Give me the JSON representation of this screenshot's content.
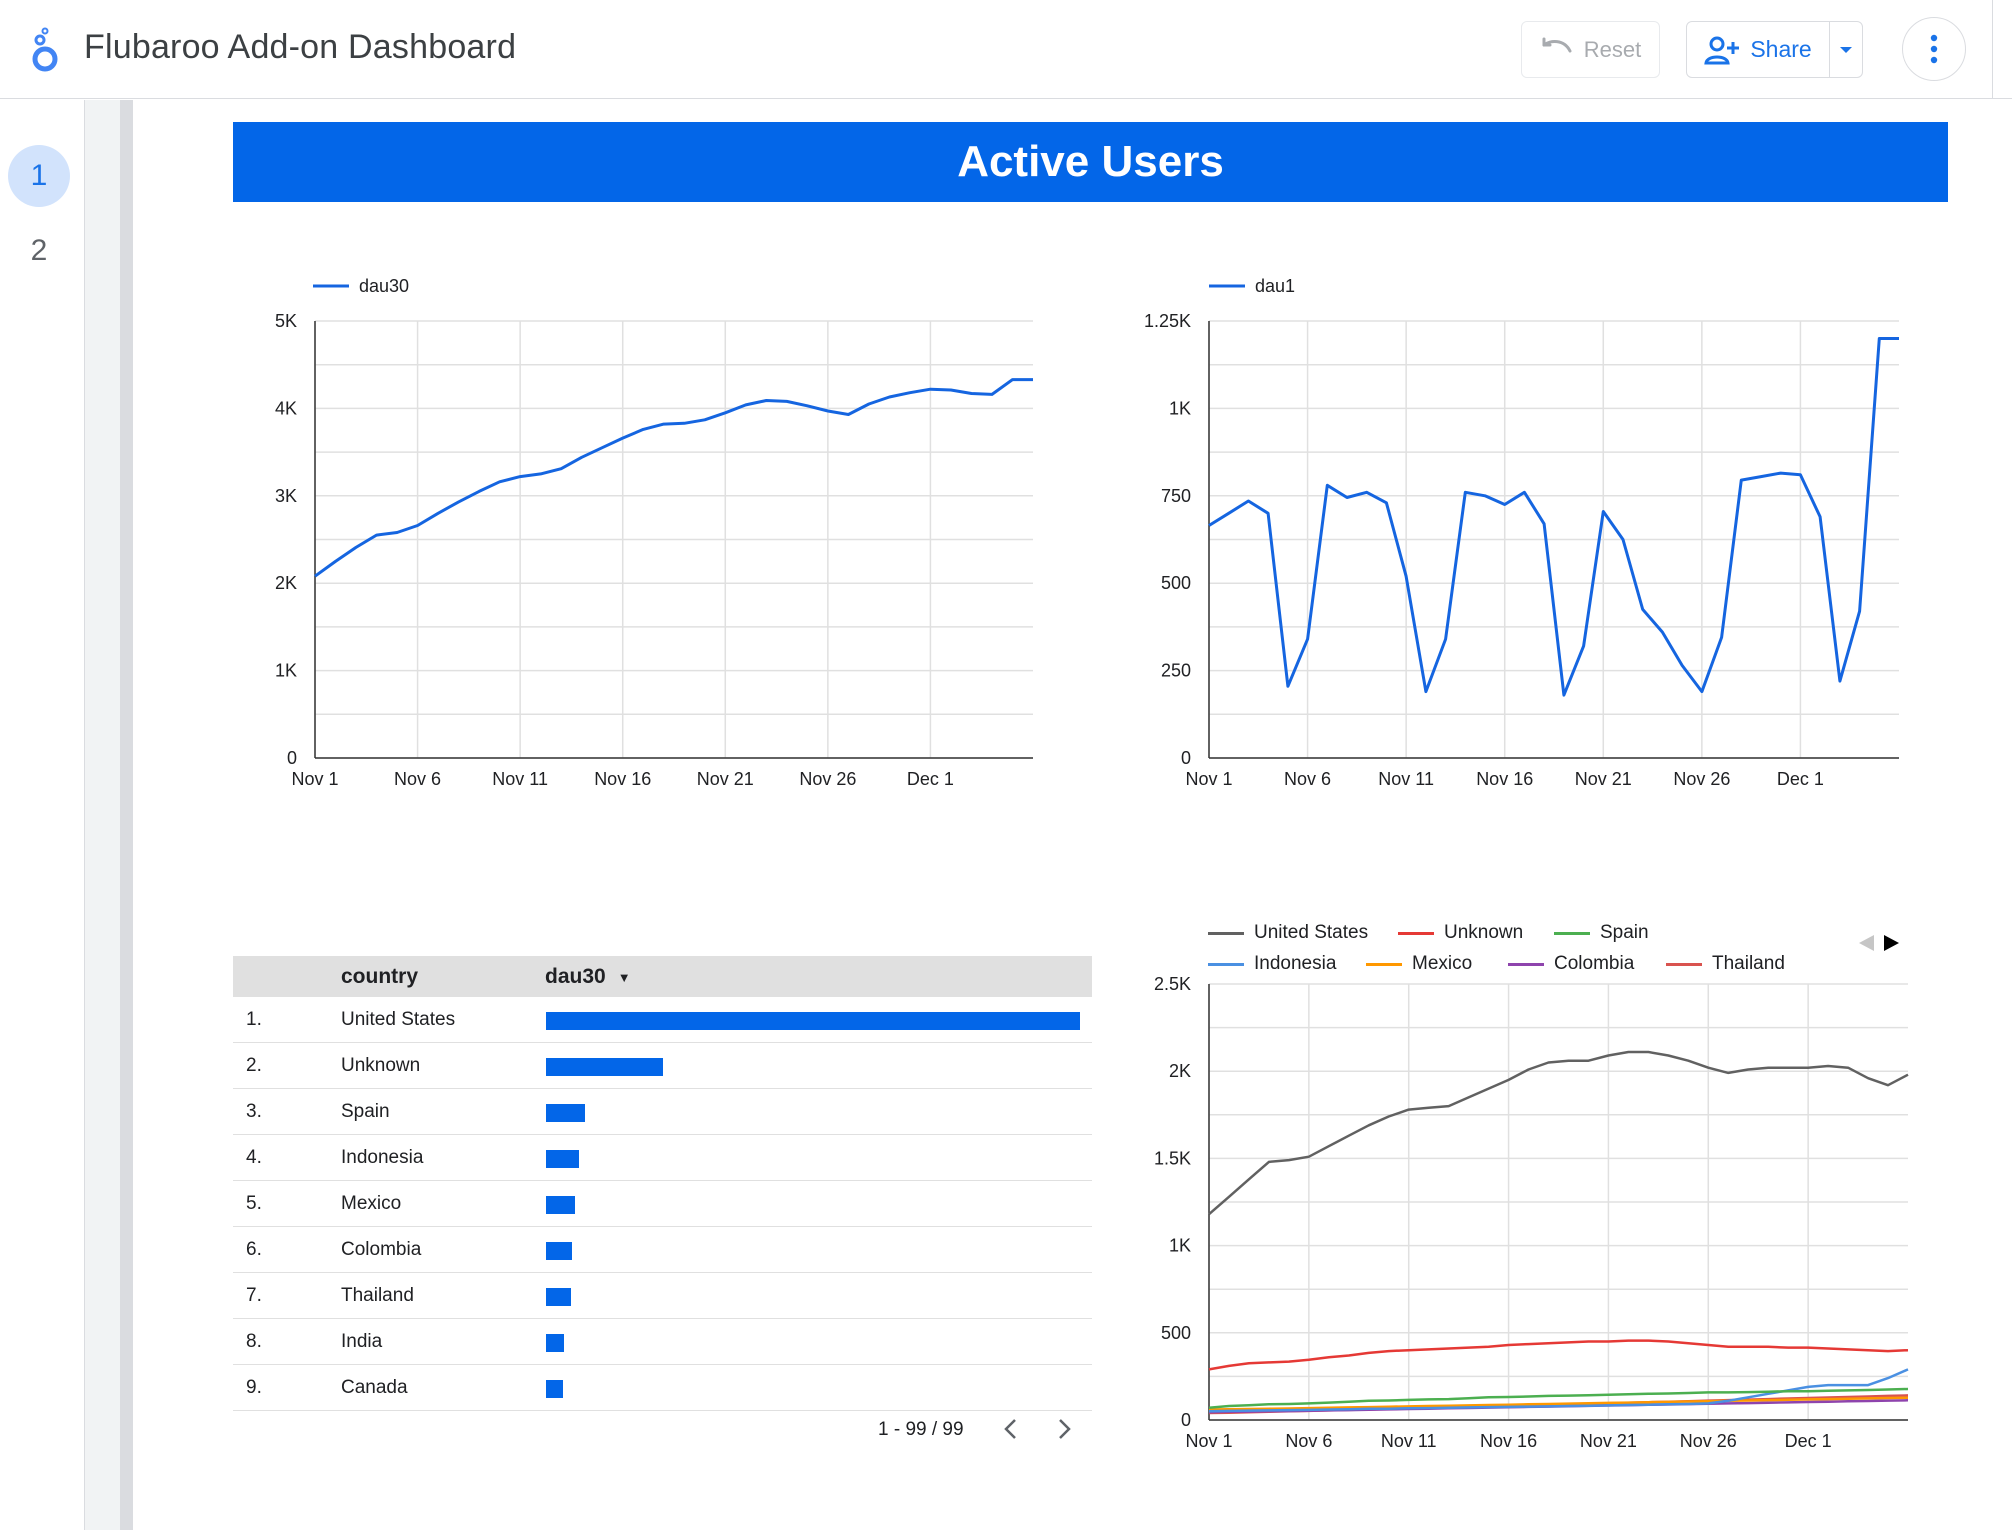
{
  "app": {
    "title": "Flubaroo Add-on Dashboard"
  },
  "toolbar": {
    "reset_label": "Reset",
    "share_label": "Share"
  },
  "pages": [
    {
      "label": "1",
      "active": true
    },
    {
      "label": "2",
      "active": false
    }
  ],
  "banner": {
    "title": "Active Users"
  },
  "colors": {
    "accent": "#0366e8",
    "share_blue": "#1a73e8"
  },
  "chart_data": [
    {
      "type": "line",
      "legend": [
        "dau30"
      ],
      "x_ticks": [
        "Nov 1",
        "Nov 6",
        "Nov 11",
        "Nov 16",
        "Nov 21",
        "Nov 26",
        "Dec 1"
      ],
      "y_ticks": [
        "0",
        "1K",
        "2K",
        "3K",
        "4K",
        "5K"
      ],
      "ylim": [
        0,
        5000
      ],
      "grid": true,
      "legend_position": "top-left",
      "series": [
        {
          "name": "dau30",
          "color": "#1565e0",
          "x": [
            1,
            2,
            3,
            4,
            5,
            6,
            7,
            8,
            9,
            10,
            11,
            12,
            13,
            14,
            15,
            16,
            17,
            18,
            19,
            20,
            21,
            22,
            23,
            24,
            25,
            26,
            27,
            28,
            29,
            30,
            31,
            32,
            33,
            34,
            35,
            36
          ],
          "values": [
            2080,
            2250,
            2410,
            2550,
            2580,
            2660,
            2800,
            2930,
            3050,
            3160,
            3220,
            3250,
            3310,
            3440,
            3550,
            3660,
            3760,
            3820,
            3830,
            3870,
            3950,
            4040,
            4090,
            4080,
            4030,
            3970,
            3930,
            4050,
            4130,
            4180,
            4220,
            4210,
            4170,
            4160,
            4330,
            4330
          ]
        }
      ]
    },
    {
      "type": "line",
      "legend": [
        "dau1"
      ],
      "x_ticks": [
        "Nov 1",
        "Nov 6",
        "Nov 11",
        "Nov 16",
        "Nov 21",
        "Nov 26",
        "Dec 1"
      ],
      "y_ticks": [
        "0",
        "250",
        "500",
        "750",
        "1K",
        "1.25K"
      ],
      "ylim": [
        0,
        1250
      ],
      "grid": true,
      "legend_position": "top-left",
      "series": [
        {
          "name": "dau1",
          "color": "#1565e0",
          "x": [
            1,
            2,
            3,
            4,
            5,
            6,
            7,
            8,
            9,
            10,
            11,
            12,
            13,
            14,
            15,
            16,
            17,
            18,
            19,
            20,
            21,
            22,
            23,
            24,
            25,
            26,
            27,
            28,
            29,
            30,
            31,
            32,
            33,
            34,
            35,
            36
          ],
          "values": [
            665,
            700,
            735,
            700,
            205,
            340,
            780,
            745,
            760,
            730,
            520,
            190,
            340,
            760,
            750,
            725,
            760,
            670,
            180,
            320,
            705,
            625,
            425,
            360,
            265,
            190,
            345,
            795,
            805,
            815,
            810,
            690,
            220,
            420,
            1200,
            1200
          ]
        }
      ]
    },
    {
      "type": "line",
      "legend": [
        "United States",
        "Unknown",
        "Spain",
        "Indonesia",
        "Mexico",
        "Colombia",
        "Thailand"
      ],
      "x_ticks": [
        "Nov 1",
        "Nov 6",
        "Nov 11",
        "Nov 16",
        "Nov 21",
        "Nov 26",
        "Dec 1"
      ],
      "y_ticks": [
        "0",
        "500",
        "1K",
        "1.5K",
        "2K",
        "2.5K"
      ],
      "ylim": [
        0,
        2500
      ],
      "grid": true,
      "legend_position": "top",
      "series": [
        {
          "name": "United States",
          "color": "#616161",
          "values": [
            1180,
            1280,
            1380,
            1480,
            1490,
            1510,
            1570,
            1630,
            1690,
            1740,
            1780,
            1790,
            1800,
            1850,
            1900,
            1950,
            2010,
            2050,
            2060,
            2060,
            2090,
            2110,
            2110,
            2090,
            2060,
            2020,
            1990,
            2010,
            2020,
            2020,
            2020,
            2030,
            2020,
            1960,
            1920,
            1980
          ]
        },
        {
          "name": "Unknown",
          "color": "#e53935",
          "values": [
            290,
            310,
            325,
            330,
            335,
            345,
            360,
            370,
            385,
            395,
            400,
            405,
            410,
            415,
            420,
            430,
            435,
            440,
            445,
            450,
            450,
            455,
            455,
            450,
            440,
            430,
            420,
            420,
            420,
            415,
            415,
            410,
            405,
            400,
            395,
            400
          ]
        },
        {
          "name": "Spain",
          "color": "#4caf50",
          "values": [
            70,
            80,
            85,
            90,
            92,
            95,
            100,
            105,
            110,
            112,
            115,
            118,
            120,
            125,
            130,
            132,
            135,
            138,
            140,
            142,
            145,
            148,
            150,
            152,
            155,
            158,
            158,
            160,
            162,
            165,
            165,
            168,
            170,
            172,
            175,
            178
          ]
        },
        {
          "name": "Indonesia",
          "color": "#4a90e2",
          "values": [
            50,
            52,
            54,
            55,
            57,
            58,
            60,
            62,
            64,
            65,
            67,
            68,
            70,
            72,
            74,
            75,
            77,
            78,
            80,
            82,
            84,
            86,
            88,
            90,
            92,
            95,
            110,
            130,
            150,
            170,
            190,
            200,
            200,
            200,
            240,
            290
          ]
        },
        {
          "name": "Mexico",
          "color": "#ff9800",
          "values": [
            60,
            62,
            63,
            65,
            66,
            68,
            70,
            72,
            74,
            76,
            78,
            80,
            82,
            84,
            86,
            88,
            90,
            92,
            94,
            96,
            98,
            100,
            102,
            104,
            106,
            108,
            110,
            112,
            114,
            116,
            118,
            120,
            122,
            124,
            126,
            128
          ]
        },
        {
          "name": "Colombia",
          "color": "#8e44ad",
          "values": [
            45,
            47,
            48,
            50,
            51,
            53,
            55,
            57,
            59,
            61,
            63,
            65,
            67,
            69,
            71,
            73,
            75,
            77,
            79,
            81,
            83,
            85,
            87,
            89,
            91,
            93,
            95,
            97,
            99,
            101,
            103,
            105,
            107,
            109,
            111,
            113
          ]
        },
        {
          "name": "Thailand",
          "color": "#d9534f",
          "values": [
            40,
            42,
            45,
            47,
            50,
            52,
            55,
            58,
            60,
            63,
            66,
            69,
            72,
            75,
            78,
            81,
            84,
            87,
            90,
            93,
            96,
            99,
            102,
            105,
            108,
            111,
            114,
            117,
            120,
            123,
            126,
            129,
            132,
            135,
            138,
            141
          ]
        }
      ]
    },
    {
      "type": "table",
      "columns": [
        "country",
        "dau30"
      ],
      "sort_column": "dau30",
      "rows": [
        {
          "rank": "1.",
          "country": "United States",
          "dau30_fraction": 1.0
        },
        {
          "rank": "2.",
          "country": "Unknown",
          "dau30_fraction": 0.22
        },
        {
          "rank": "3.",
          "country": "Spain",
          "dau30_fraction": 0.073
        },
        {
          "rank": "4.",
          "country": "Indonesia",
          "dau30_fraction": 0.062
        },
        {
          "rank": "5.",
          "country": "Mexico",
          "dau30_fraction": 0.055
        },
        {
          "rank": "6.",
          "country": "Colombia",
          "dau30_fraction": 0.049
        },
        {
          "rank": "7.",
          "country": "Thailand",
          "dau30_fraction": 0.046
        },
        {
          "rank": "8.",
          "country": "India",
          "dau30_fraction": 0.034
        },
        {
          "rank": "9.",
          "country": "Canada",
          "dau30_fraction": 0.032
        }
      ],
      "pager": "1 - 99 / 99"
    }
  ]
}
